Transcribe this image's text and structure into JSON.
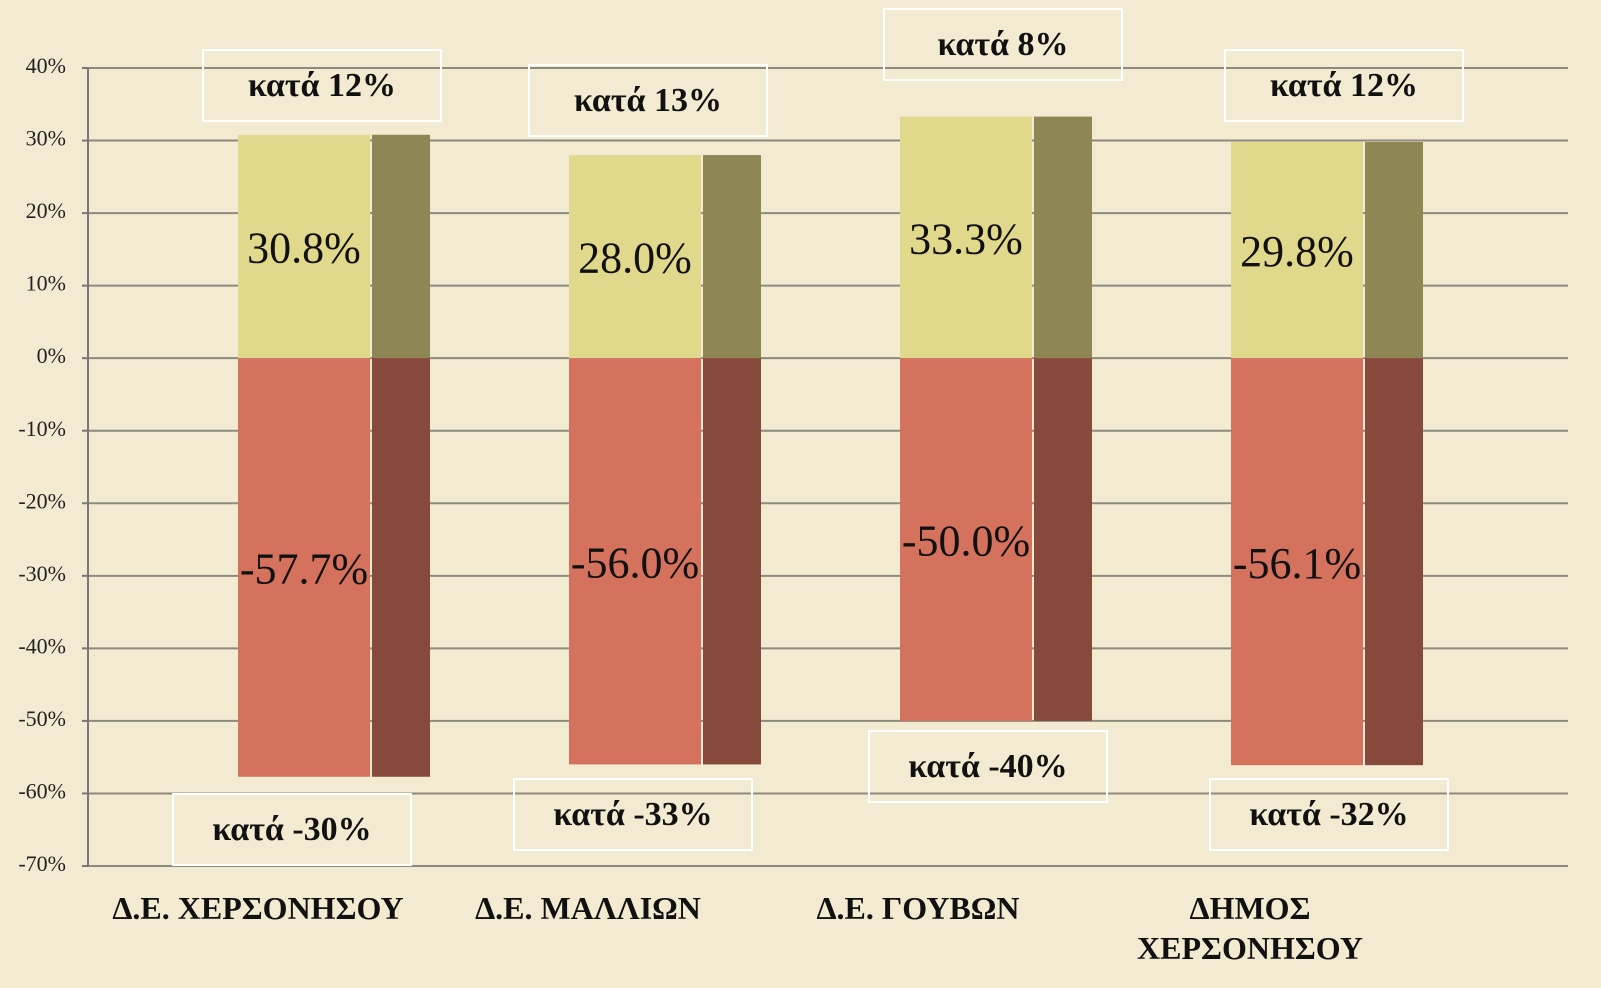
{
  "chart_data": {
    "type": "bar",
    "categories": [
      "Δ.Ε. ΧΕΡΣΟΝΗΣΟΥ",
      "Δ.Ε. ΜΑΛΛΙΩΝ",
      "Δ.Ε. ΓΟΥΒΩΝ",
      "ΔΗΜΟΣ ΧΕΡΣΟΝΗΣΟΥ"
    ],
    "series": [
      {
        "color": "#e0d98c",
        "values": [
          30.8,
          28.0,
          33.3,
          29.8
        ],
        "value_labels": [
          "30.8%",
          "28.0%",
          "33.3%",
          "29.8%"
        ]
      },
      {
        "color": "#8f8656",
        "values": [
          30.8,
          28.0,
          33.3,
          29.8
        ]
      },
      {
        "color": "#d4725e",
        "values": [
          -57.7,
          -56.0,
          -50.0,
          -56.1
        ],
        "value_labels": [
          "-57.7%",
          "-56.0%",
          "-50.0%",
          "-56.1%"
        ]
      },
      {
        "color": "#87493c",
        "values": [
          -57.7,
          -56.0,
          -50.0,
          -56.1
        ]
      }
    ],
    "annotations_top": [
      "κατά 12%",
      "κατά 13%",
      "κατά 8%",
      "κατά 12%"
    ],
    "annotations_bottom": [
      "κατά -30%",
      "κατά -33%",
      "κατά -40%",
      "κατά -32%"
    ],
    "ylim": [
      -70,
      40
    ],
    "yticks": [
      {
        "value": 40,
        "label": "40%"
      },
      {
        "value": 30,
        "label": "30%"
      },
      {
        "value": 20,
        "label": "20%"
      },
      {
        "value": 10,
        "label": "10%"
      },
      {
        "value": 0,
        "label": "0%"
      },
      {
        "value": -10,
        "label": "-10%"
      },
      {
        "value": -20,
        "label": "-20%"
      },
      {
        "value": -30,
        "label": "-30%"
      },
      {
        "value": -40,
        "label": "-40%"
      },
      {
        "value": -50,
        "label": "-50%"
      },
      {
        "value": -60,
        "label": "-60%"
      },
      {
        "value": -70,
        "label": "-70%"
      }
    ],
    "grid": true
  }
}
